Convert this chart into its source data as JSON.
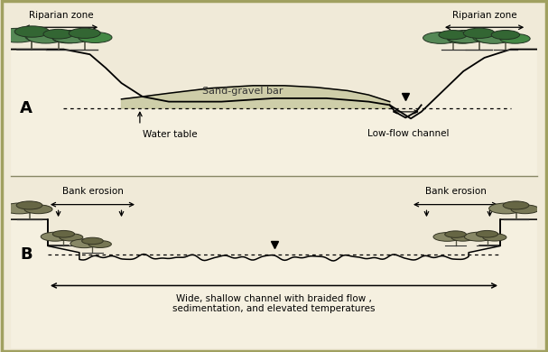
{
  "bg_color": "#f0ead8",
  "panel_bg": "#f0ead8",
  "border_color": "#a0a060",
  "text_color": "#111111",
  "panel_A": {
    "label": "A",
    "riparian_left_label": "Riparian zone",
    "riparian_right_label": "Riparian zone",
    "water_table_label": "Water table",
    "low_flow_label": "Low-flow channel",
    "sand_gravel_label": "Sand-gravel bar"
  },
  "panel_B": {
    "label": "B",
    "bank_erosion_left": "Bank erosion",
    "bank_erosion_right": "Bank erosion",
    "wide_shallow_label": "Wide, shallow channel with braided flow ,\nsedimentation, and elevated temperatures"
  }
}
